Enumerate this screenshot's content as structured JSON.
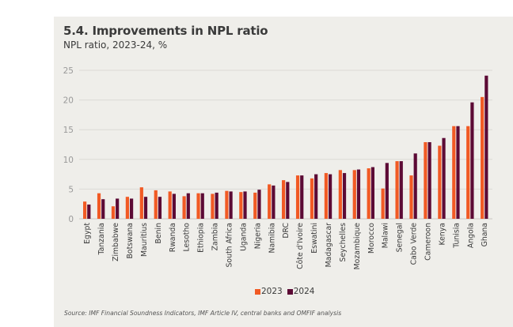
{
  "chart_data": {
    "type": "bar",
    "title": "5.4. Improvements in NPL ratio",
    "subtitle": "NPL ratio, 2023-24, %",
    "xlabel": "",
    "ylabel": "",
    "ylim": [
      0,
      25
    ],
    "yticks": [
      0,
      5,
      10,
      15,
      20,
      25
    ],
    "grid": true,
    "legend_position": "bottom-center",
    "categories": [
      "Egypt",
      "Tanzania",
      "Zimbabwe",
      "Botswana",
      "Mauritius",
      "Benin",
      "Rwanda",
      "Lesotho",
      "Ethiopia",
      "Zambia",
      "South Africa",
      "Uganda",
      "Nigeria",
      "Namibia",
      "DRC",
      "Côte d'Ivoire",
      "Eswatini",
      "Madagascar",
      "Seychelles",
      "Mozambique",
      "Morocco",
      "Malawi",
      "Senegal",
      "Cabo Verde",
      "Cameroon",
      "Kenya",
      "Tunisia",
      "Angola",
      "Ghana"
    ],
    "series": [
      {
        "name": "2023",
        "color": "#F15A24",
        "values": [
          2.9,
          4.3,
          2.1,
          3.7,
          5.3,
          4.8,
          4.6,
          3.8,
          4.3,
          4.2,
          4.7,
          4.5,
          4.4,
          5.8,
          6.5,
          7.3,
          6.8,
          7.7,
          8.2,
          8.2,
          8.5,
          5.1,
          9.7,
          7.3,
          12.9,
          12.3,
          15.6,
          15.6,
          20.5
        ]
      },
      {
        "name": "2024",
        "color": "#5C0A35",
        "values": [
          2.4,
          3.3,
          3.4,
          3.4,
          3.7,
          3.7,
          4.2,
          4.3,
          4.3,
          4.4,
          4.6,
          4.6,
          4.9,
          5.6,
          6.2,
          7.3,
          7.5,
          7.5,
          7.7,
          8.3,
          8.7,
          9.4,
          9.7,
          11.0,
          12.9,
          13.6,
          15.6,
          19.6,
          24.1
        ]
      }
    ],
    "source": "Source: IMF Financial Soundness Indicators, IMF Article IV, central banks and OMFIF analysis"
  }
}
